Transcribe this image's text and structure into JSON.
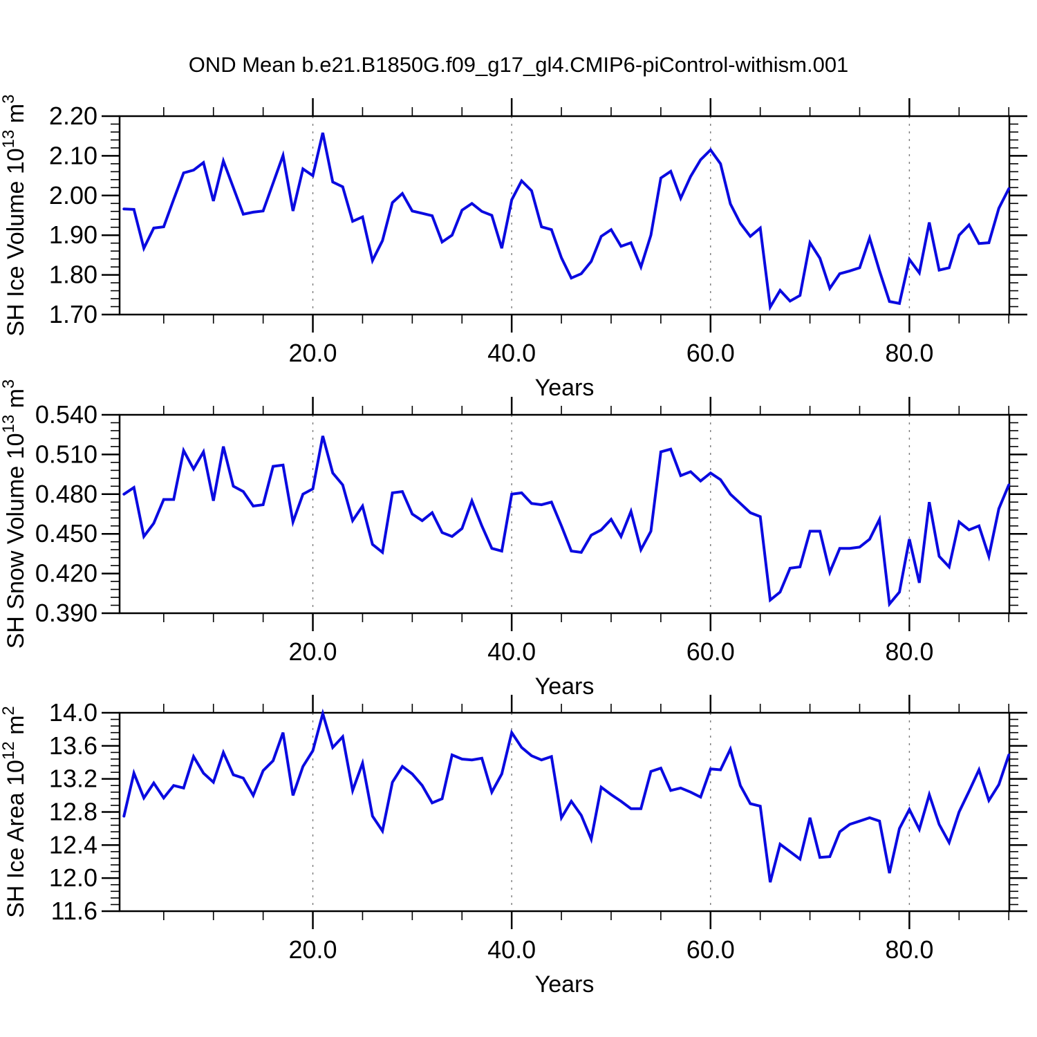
{
  "title": "OND Mean b.e21.B1850G.f09_g17_gl4.CMIP6-piControl-withism.001",
  "colors": {
    "line": "#0a0ae0",
    "grid": "#7a7a7a",
    "axis": "#000000",
    "background": "#ffffff",
    "text": "#000000"
  },
  "x_axis": {
    "label": "Years",
    "tick_values": [
      20,
      40,
      60,
      80
    ],
    "tick_labels": [
      "20.0",
      "40.0",
      "60.0",
      "80.0"
    ],
    "minor_step": 5,
    "x_start": 1,
    "x_end": 90
  },
  "chart_data": [
    {
      "type": "line",
      "name": "sh-ice-volume",
      "ylabel": "SH Ice Volume 10^13 m^3",
      "ylabel_parts": [
        {
          "t": "SH Ice Volume 10"
        },
        {
          "t": "13",
          "sup": true
        },
        {
          "t": " m"
        },
        {
          "t": "3",
          "sup": true
        }
      ],
      "xlabel": "Years",
      "ylim": [
        1.7,
        2.2
      ],
      "y_tick_values": [
        2.2,
        2.1,
        2.0,
        1.9,
        1.8,
        1.7
      ],
      "y_tick_labels": [
        "2.20",
        "2.10",
        "2.00",
        "1.90",
        "1.80",
        "1.70"
      ],
      "y_minor_step": 0.02,
      "grid_x": [
        20,
        40,
        60,
        80
      ],
      "legend": "none",
      "values": [
        1.966,
        1.965,
        1.867,
        1.918,
        1.921,
        1.99,
        2.057,
        2.064,
        2.083,
        1.986,
        2.087,
        2.02,
        1.953,
        1.958,
        1.961,
        2.031,
        2.101,
        1.961,
        2.067,
        2.05,
        2.158,
        2.034,
        2.022,
        1.935,
        1.946,
        1.836,
        1.886,
        1.982,
        2.005,
        1.961,
        1.955,
        1.949,
        1.883,
        1.9,
        1.963,
        1.98,
        1.96,
        1.95,
        1.867,
        1.989,
        2.037,
        2.012,
        1.921,
        1.914,
        1.843,
        1.792,
        1.803,
        1.834,
        1.897,
        1.914,
        1.872,
        1.881,
        1.82,
        1.9,
        2.044,
        2.061,
        1.993,
        2.048,
        2.09,
        2.115,
        2.08,
        1.979,
        1.93,
        1.897,
        1.918,
        1.719,
        1.761,
        1.734,
        1.748,
        1.881,
        1.842,
        1.766,
        1.803,
        1.81,
        1.818,
        1.893,
        1.81,
        1.733,
        1.728,
        1.839,
        1.805,
        1.932,
        1.812,
        1.818,
        1.9,
        1.926,
        1.879,
        1.881,
        1.968,
        2.017
      ]
    },
    {
      "type": "line",
      "name": "sh-snow-volume",
      "ylabel": "SH Snow Volume 10^13 m^3",
      "ylabel_parts": [
        {
          "t": "SH Snow Volume 10"
        },
        {
          "t": "13",
          "sup": true
        },
        {
          "t": " m"
        },
        {
          "t": "3",
          "sup": true
        }
      ],
      "xlabel": "Years",
      "ylim": [
        0.39,
        0.54
      ],
      "y_tick_values": [
        0.54,
        0.51,
        0.48,
        0.45,
        0.42,
        0.39
      ],
      "y_tick_labels": [
        "0.540",
        "0.510",
        "0.480",
        "0.450",
        "0.420",
        "0.390"
      ],
      "y_minor_step": 0.006,
      "grid_x": [
        20,
        40,
        60,
        80
      ],
      "legend": "none",
      "values": [
        0.48,
        0.485,
        0.448,
        0.458,
        0.476,
        0.476,
        0.513,
        0.499,
        0.512,
        0.475,
        0.516,
        0.486,
        0.482,
        0.471,
        0.472,
        0.501,
        0.502,
        0.459,
        0.48,
        0.484,
        0.524,
        0.496,
        0.487,
        0.46,
        0.471,
        0.442,
        0.436,
        0.481,
        0.482,
        0.465,
        0.46,
        0.466,
        0.451,
        0.448,
        0.454,
        0.475,
        0.456,
        0.439,
        0.437,
        0.48,
        0.481,
        0.473,
        0.472,
        0.474,
        0.456,
        0.437,
        0.436,
        0.449,
        0.453,
        0.461,
        0.448,
        0.467,
        0.438,
        0.452,
        0.512,
        0.514,
        0.494,
        0.497,
        0.49,
        0.496,
        0.491,
        0.48,
        0.473,
        0.466,
        0.463,
        0.4,
        0.406,
        0.424,
        0.425,
        0.452,
        0.452,
        0.421,
        0.439,
        0.439,
        0.44,
        0.446,
        0.461,
        0.397,
        0.406,
        0.446,
        0.413,
        0.474,
        0.433,
        0.425,
        0.459,
        0.453,
        0.456,
        0.433,
        0.469,
        0.487
      ]
    },
    {
      "type": "line",
      "name": "sh-ice-area",
      "ylabel": "SH Ice Area 10^12 m^2",
      "ylabel_parts": [
        {
          "t": "SH Ice Area 10"
        },
        {
          "t": "12",
          "sup": true
        },
        {
          "t": " m"
        },
        {
          "t": "2",
          "sup": true
        }
      ],
      "xlabel": "Years",
      "ylim": [
        11.6,
        14.0
      ],
      "y_tick_values": [
        14.0,
        13.6,
        13.2,
        12.8,
        12.4,
        12.0,
        11.6
      ],
      "y_tick_labels": [
        "14.0",
        "13.6",
        "13.2",
        "12.8",
        "12.4",
        "12.0",
        "11.6"
      ],
      "y_minor_step": 0.08,
      "grid_x": [
        20,
        40,
        60,
        80
      ],
      "legend": "none",
      "values": [
        12.75,
        13.27,
        12.97,
        13.15,
        12.97,
        13.12,
        13.09,
        13.47,
        13.27,
        13.16,
        13.52,
        13.25,
        13.21,
        13.0,
        13.3,
        13.42,
        13.76,
        13.0,
        13.35,
        13.54,
        13.99,
        13.58,
        13.71,
        13.06,
        13.39,
        12.75,
        12.57,
        13.16,
        13.35,
        13.26,
        13.12,
        12.91,
        12.96,
        13.49,
        13.44,
        13.43,
        13.45,
        13.04,
        13.26,
        13.76,
        13.58,
        13.48,
        13.43,
        13.47,
        12.73,
        12.93,
        12.76,
        12.47,
        13.1,
        13.01,
        12.93,
        12.84,
        12.84,
        13.29,
        13.33,
        13.06,
        13.09,
        13.04,
        12.98,
        13.32,
        13.31,
        13.56,
        13.12,
        12.9,
        12.87,
        11.95,
        12.41,
        12.32,
        12.23,
        12.73,
        12.25,
        12.26,
        12.56,
        12.65,
        12.69,
        12.73,
        12.69,
        12.06,
        12.6,
        12.83,
        12.59,
        13.01,
        12.65,
        12.43,
        12.8,
        13.05,
        13.31,
        12.94,
        13.13,
        13.49
      ]
    }
  ]
}
